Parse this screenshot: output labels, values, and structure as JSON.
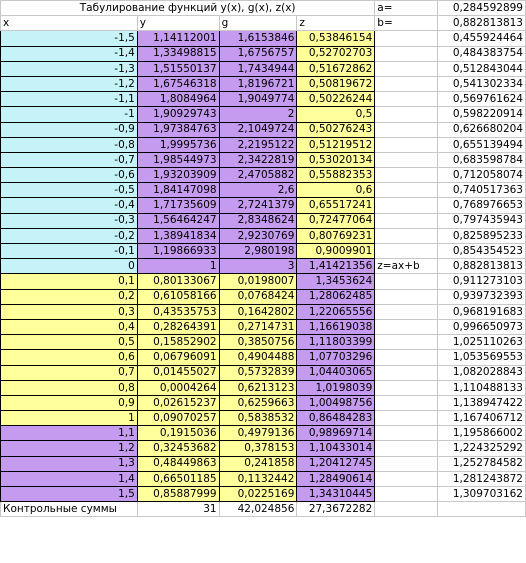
{
  "sheet": {
    "title": "Табулирование функций y(x), g(x), z(x)",
    "params": [
      {
        "label": "a=",
        "value": "0,284592899"
      },
      {
        "label": "b=",
        "value": "0,882813813"
      }
    ],
    "headers": {
      "x": "x",
      "y": "y",
      "g": "g",
      "z": "z"
    },
    "formula_label": "z=ax+b",
    "colors": {
      "cyan": "#c6f3f7",
      "violet": "#c49bee",
      "yellow": "#ffff9c",
      "white": "#ffffff"
    },
    "rows": [
      {
        "x": "-1,5",
        "y": "1,14112001",
        "g": "1,6153846",
        "z": "0,53846154",
        "w": "0,455924464",
        "cx": "cyan",
        "cy": "violet",
        "cg": "violet",
        "cz": "yellow"
      },
      {
        "x": "-1,4",
        "y": "1,33498815",
        "g": "1,6756757",
        "z": "0,52702703",
        "w": "0,484383754",
        "cx": "cyan",
        "cy": "violet",
        "cg": "violet",
        "cz": "yellow"
      },
      {
        "x": "-1,3",
        "y": "1,51550137",
        "g": "1,7434944",
        "z": "0,51672862",
        "w": "0,512843044",
        "cx": "cyan",
        "cy": "violet",
        "cg": "violet",
        "cz": "yellow"
      },
      {
        "x": "-1,2",
        "y": "1,67546318",
        "g": "1,8196721",
        "z": "0,50819672",
        "w": "0,541302334",
        "cx": "cyan",
        "cy": "violet",
        "cg": "violet",
        "cz": "yellow"
      },
      {
        "x": "-1,1",
        "y": "1,8084964",
        "g": "1,9049774",
        "z": "0,50226244",
        "w": "0,569761624",
        "cx": "cyan",
        "cy": "violet",
        "cg": "violet",
        "cz": "yellow"
      },
      {
        "x": "-1",
        "y": "1,90929743",
        "g": "2",
        "z": "0,5",
        "w": "0,598220914",
        "cx": "cyan",
        "cy": "violet",
        "cg": "violet",
        "cz": "yellow"
      },
      {
        "x": "-0,9",
        "y": "1,97384763",
        "g": "2,1049724",
        "z": "0,50276243",
        "w": "0,626680204",
        "cx": "cyan",
        "cy": "violet",
        "cg": "violet",
        "cz": "yellow"
      },
      {
        "x": "-0,8",
        "y": "1,9995736",
        "g": "2,2195122",
        "z": "0,51219512",
        "w": "0,655139494",
        "cx": "cyan",
        "cy": "violet",
        "cg": "violet",
        "cz": "yellow"
      },
      {
        "x": "-0,7",
        "y": "1,98544973",
        "g": "2,3422819",
        "z": "0,53020134",
        "w": "0,683598784",
        "cx": "cyan",
        "cy": "violet",
        "cg": "violet",
        "cz": "yellow"
      },
      {
        "x": "-0,6",
        "y": "1,93203909",
        "g": "2,4705882",
        "z": "0,55882353",
        "w": "0,712058074",
        "cx": "cyan",
        "cy": "violet",
        "cg": "violet",
        "cz": "yellow"
      },
      {
        "x": "-0,5",
        "y": "1,84147098",
        "g": "2,6",
        "z": "0,6",
        "w": "0,740517363",
        "cx": "cyan",
        "cy": "violet",
        "cg": "violet",
        "cz": "yellow"
      },
      {
        "x": "-0,4",
        "y": "1,71735609",
        "g": "2,7241379",
        "z": "0,65517241",
        "w": "0,768976653",
        "cx": "cyan",
        "cy": "violet",
        "cg": "violet",
        "cz": "yellow"
      },
      {
        "x": "-0,3",
        "y": "1,56464247",
        "g": "2,8348624",
        "z": "0,72477064",
        "w": "0,797435943",
        "cx": "cyan",
        "cy": "violet",
        "cg": "violet",
        "cz": "yellow"
      },
      {
        "x": "-0,2",
        "y": "1,38941834",
        "g": "2,9230769",
        "z": "0,80769231",
        "w": "0,825895233",
        "cx": "cyan",
        "cy": "violet",
        "cg": "violet",
        "cz": "yellow"
      },
      {
        "x": "-0,1",
        "y": "1,19866933",
        "g": "2,980198",
        "z": "0,9009901",
        "w": "0,854354523",
        "cx": "cyan",
        "cy": "violet",
        "cg": "violet",
        "cz": "yellow"
      },
      {
        "x": "0",
        "y": "1",
        "g": "3",
        "z": "1,41421356",
        "w": "0,882813813",
        "cx": "cyan",
        "cy": "violet",
        "cg": "violet",
        "cz": "violet",
        "extra": true
      },
      {
        "x": "0,1",
        "y": "0,80133067",
        "g": "0,0198007",
        "z": "1,3453624",
        "w": "0,911273103",
        "cx": "yellow",
        "cy": "yellow",
        "cg": "yellow",
        "cz": "violet"
      },
      {
        "x": "0,2",
        "y": "0,61058166",
        "g": "0,0768424",
        "z": "1,28062485",
        "w": "0,939732393",
        "cx": "yellow",
        "cy": "yellow",
        "cg": "yellow",
        "cz": "violet"
      },
      {
        "x": "0,3",
        "y": "0,43535753",
        "g": "0,1642802",
        "z": "1,22065556",
        "w": "0,968191683",
        "cx": "yellow",
        "cy": "yellow",
        "cg": "yellow",
        "cz": "violet"
      },
      {
        "x": "0,4",
        "y": "0,28264391",
        "g": "0,2714731",
        "z": "1,16619038",
        "w": "0,996650973",
        "cx": "yellow",
        "cy": "yellow",
        "cg": "yellow",
        "cz": "violet"
      },
      {
        "x": "0,5",
        "y": "0,15852902",
        "g": "0,3850756",
        "z": "1,11803399",
        "w": "1,025110263",
        "cx": "yellow",
        "cy": "yellow",
        "cg": "yellow",
        "cz": "violet"
      },
      {
        "x": "0,6",
        "y": "0,06796091",
        "g": "0,4904488",
        "z": "1,07703296",
        "w": "1,053569553",
        "cx": "yellow",
        "cy": "yellow",
        "cg": "yellow",
        "cz": "violet"
      },
      {
        "x": "0,7",
        "y": "0,01455027",
        "g": "0,5732839",
        "z": "1,04403065",
        "w": "1,082028843",
        "cx": "yellow",
        "cy": "yellow",
        "cg": "yellow",
        "cz": "violet"
      },
      {
        "x": "0,8",
        "y": "0,0004264",
        "g": "0,6213123",
        "z": "1,0198039",
        "w": "1,110488133",
        "cx": "yellow",
        "cy": "yellow",
        "cg": "yellow",
        "cz": "violet"
      },
      {
        "x": "0,9",
        "y": "0,02615237",
        "g": "0,6259663",
        "z": "1,00498756",
        "w": "1,138947422",
        "cx": "yellow",
        "cy": "yellow",
        "cg": "yellow",
        "cz": "violet"
      },
      {
        "x": "1",
        "y": "0,09070257",
        "g": "0,5838532",
        "z": "0,86484283",
        "w": "1,167406712",
        "cx": "yellow",
        "cy": "yellow",
        "cg": "yellow",
        "cz": "violet"
      },
      {
        "x": "1,1",
        "y": "0,1915036",
        "g": "0,4979136",
        "z": "0,98969714",
        "w": "1,195866002",
        "cx": "violet",
        "cy": "yellow",
        "cg": "yellow",
        "cz": "violet"
      },
      {
        "x": "1,2",
        "y": "0,32453682",
        "g": "0,378153",
        "z": "1,10433014",
        "w": "1,224325292",
        "cx": "violet",
        "cy": "yellow",
        "cg": "yellow",
        "cz": "violet"
      },
      {
        "x": "1,3",
        "y": "0,48449863",
        "g": "0,241858",
        "z": "1,20412745",
        "w": "1,252784582",
        "cx": "violet",
        "cy": "yellow",
        "cg": "yellow",
        "cz": "violet"
      },
      {
        "x": "1,4",
        "y": "0,66501185",
        "g": "0,1132442",
        "z": "1,28490614",
        "w": "1,281243872",
        "cx": "violet",
        "cy": "yellow",
        "cg": "yellow",
        "cz": "violet"
      },
      {
        "x": "1,5",
        "y": "0,85887999",
        "g": "0,0225169",
        "z": "1,34310445",
        "w": "1,309703162",
        "cx": "violet",
        "cy": "yellow",
        "cg": "yellow",
        "cz": "violet"
      }
    ],
    "totals": {
      "label": "Контрольные суммы",
      "y": "31",
      "g": "42,024856",
      "z": "27,3672282"
    }
  }
}
